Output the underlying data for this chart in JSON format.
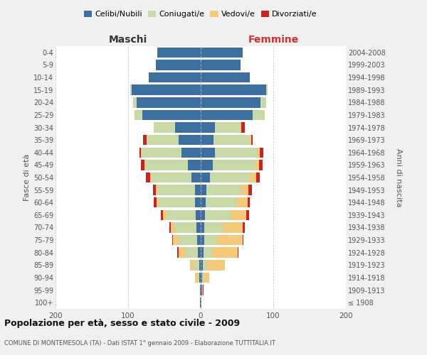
{
  "age_groups": [
    "100+",
    "95-99",
    "90-94",
    "85-89",
    "80-84",
    "75-79",
    "70-74",
    "65-69",
    "60-64",
    "55-59",
    "50-54",
    "45-49",
    "40-44",
    "35-39",
    "30-34",
    "25-29",
    "20-24",
    "15-19",
    "10-14",
    "5-9",
    "0-4"
  ],
  "birth_years": [
    "≤ 1908",
    "1909-1913",
    "1914-1918",
    "1919-1923",
    "1924-1928",
    "1929-1933",
    "1934-1938",
    "1939-1943",
    "1944-1948",
    "1949-1953",
    "1954-1958",
    "1959-1963",
    "1964-1968",
    "1969-1973",
    "1974-1978",
    "1979-1983",
    "1984-1988",
    "1989-1993",
    "1994-1998",
    "1999-2003",
    "2004-2008"
  ],
  "maschi": {
    "celibi": [
      1,
      1,
      2,
      2,
      4,
      5,
      6,
      7,
      8,
      8,
      13,
      18,
      26,
      30,
      35,
      80,
      88,
      95,
      72,
      62,
      60
    ],
    "coniugati": [
      0,
      0,
      2,
      8,
      18,
      25,
      30,
      40,
      50,
      52,
      55,
      58,
      55,
      45,
      30,
      10,
      5,
      2,
      0,
      0,
      0
    ],
    "vedovi": [
      0,
      0,
      4,
      5,
      8,
      8,
      5,
      5,
      3,
      2,
      2,
      1,
      1,
      0,
      0,
      1,
      0,
      0,
      0,
      0,
      0
    ],
    "divorziati": [
      0,
      0,
      0,
      0,
      2,
      1,
      2,
      3,
      4,
      4,
      5,
      5,
      2,
      4,
      0,
      0,
      0,
      0,
      0,
      0,
      0
    ]
  },
  "femmine": {
    "nubili": [
      1,
      2,
      2,
      3,
      4,
      5,
      5,
      6,
      7,
      8,
      13,
      17,
      20,
      18,
      20,
      72,
      82,
      90,
      68,
      55,
      58
    ],
    "coniugate": [
      0,
      0,
      2,
      5,
      12,
      18,
      25,
      35,
      43,
      48,
      55,
      58,
      58,
      50,
      35,
      15,
      8,
      2,
      0,
      0,
      0
    ],
    "vedove": [
      0,
      1,
      8,
      25,
      35,
      35,
      28,
      22,
      15,
      10,
      8,
      5,
      3,
      2,
      1,
      1,
      0,
      0,
      0,
      0,
      0
    ],
    "divorziate": [
      0,
      1,
      0,
      0,
      1,
      1,
      3,
      4,
      3,
      5,
      5,
      5,
      5,
      2,
      5,
      0,
      0,
      0,
      0,
      0,
      0
    ]
  },
  "color_celibi": "#3d6ea0",
  "color_coniugati": "#c8d9a8",
  "color_vedovi": "#f5c97a",
  "color_divorziati": "#cc2222",
  "xlim": 200,
  "title": "Popolazione per età, sesso e stato civile - 2009",
  "subtitle": "COMUNE DI MONTEMESOLA (TA) - Dati ISTAT 1° gennaio 2009 - Elaborazione TUTTITALIA.IT",
  "ylabel_left": "Fasce di età",
  "ylabel_right": "Anni di nascita",
  "xlabel_maschi": "Maschi",
  "xlabel_femmine": "Femmine",
  "bg_color": "#f0f0f0",
  "plot_bg": "#ffffff"
}
